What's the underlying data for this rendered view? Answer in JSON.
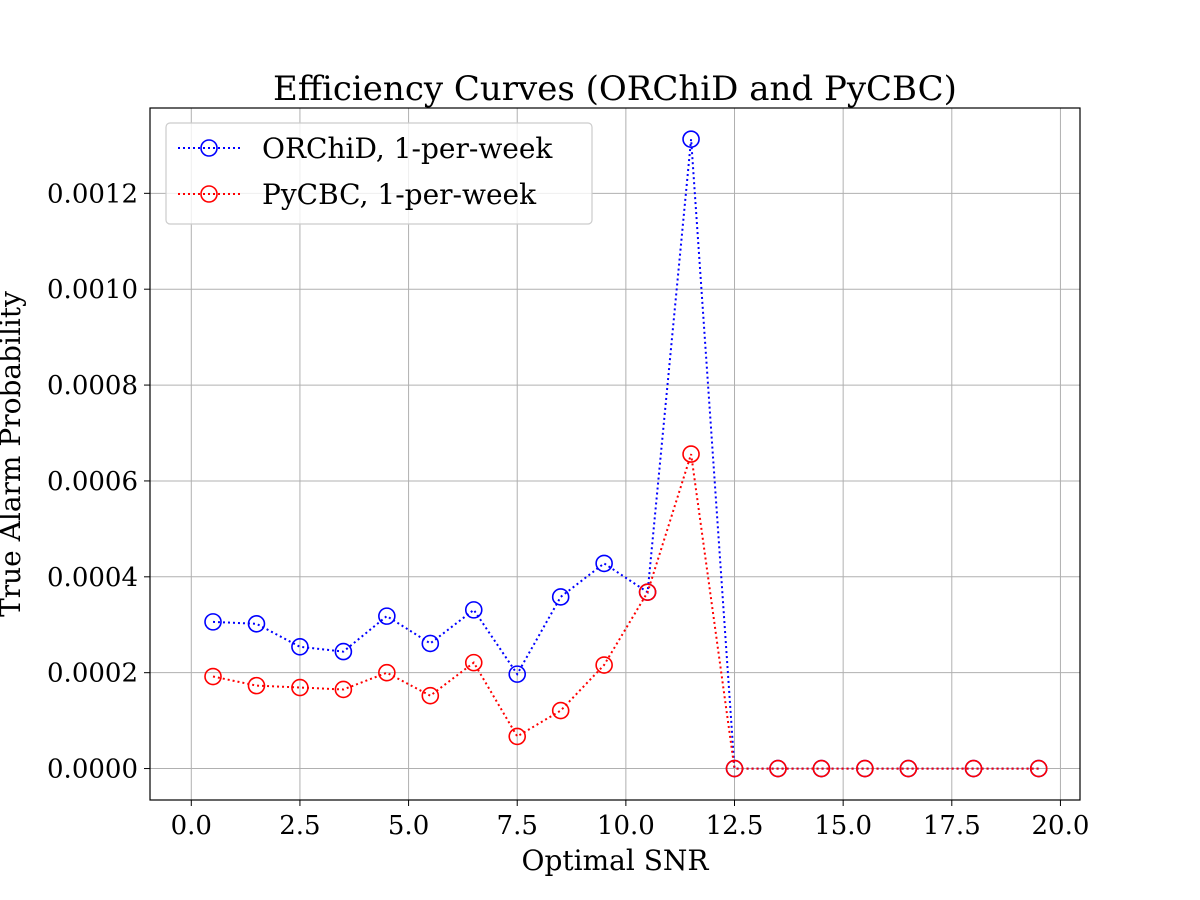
{
  "chart_data": {
    "type": "line",
    "title": "Efficiency Curves (ORChiD and PyCBC)",
    "xlabel": "Optimal SNR",
    "ylabel": "True Alarm Probability",
    "xlim": [
      -0.95,
      20.45
    ],
    "ylim": [
      -6.56e-05,
      0.001378
    ],
    "x_ticks": [
      0.0,
      2.5,
      5.0,
      7.5,
      10.0,
      12.5,
      15.0,
      17.5,
      20.0
    ],
    "x_tick_labels": [
      "0.0",
      "2.5",
      "5.0",
      "7.5",
      "10.0",
      "12.5",
      "15.0",
      "17.5",
      "20.0"
    ],
    "y_ticks": [
      0.0,
      0.0002,
      0.0004,
      0.0006,
      0.0008,
      0.001,
      0.0012
    ],
    "y_tick_labels": [
      "0.0000",
      "0.0002",
      "0.0004",
      "0.0006",
      "0.0008",
      "0.0010",
      "0.0012"
    ],
    "grid": true,
    "legend_position": "top-left",
    "x": [
      0.5,
      1.5,
      2.5,
      3.5,
      4.5,
      5.5,
      6.5,
      7.5,
      8.5,
      9.5,
      10.5,
      11.5,
      12.5,
      13.5,
      14.5,
      15.5,
      16.5,
      18.0,
      19.5
    ],
    "series": [
      {
        "name": "ORChiD, 1-per-week",
        "color": "#0000ff",
        "marker": "open-circle",
        "linestyle": "dotted",
        "values": [
          0.000306,
          0.000302,
          0.000254,
          0.000244,
          0.000318,
          0.000261,
          0.000331,
          0.000197,
          0.000358,
          0.000428,
          0.000368,
          0.001313,
          0.0,
          0.0,
          0.0,
          0.0,
          0.0,
          0.0,
          0.0
        ]
      },
      {
        "name": "PyCBC, 1-per-week",
        "color": "#ff0000",
        "marker": "open-circle",
        "linestyle": "dotted",
        "values": [
          0.000192,
          0.000173,
          0.000169,
          0.000165,
          0.0002,
          0.000152,
          0.000221,
          6.7e-05,
          0.000121,
          0.000216,
          0.000368,
          0.000656,
          0.0,
          0.0,
          0.0,
          0.0,
          0.0,
          0.0,
          0.0
        ]
      }
    ]
  }
}
